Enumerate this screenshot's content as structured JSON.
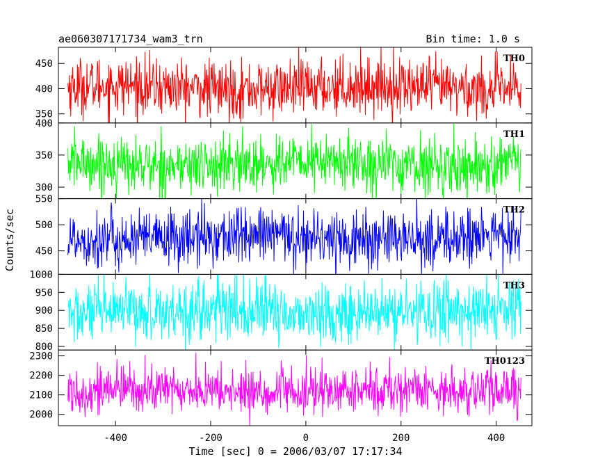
{
  "chart_data": {
    "type": "line",
    "title": "ae060307171734_wam3_trn",
    "subtitle": "Bin time: 1.0 s",
    "xlabel": "Time [sec] 0 = 2006/03/07 17:17:34",
    "ylabel": "Counts/sec",
    "xlim": [
      -520,
      475
    ],
    "x_range": [
      -500,
      452
    ],
    "x_ticks": [
      -400,
      -200,
      0,
      200,
      400
    ],
    "grid": false,
    "panels": [
      {
        "name": "TH0",
        "color": "#ff0000",
        "ylim": [
          332,
          482
        ],
        "y_ticks": [
          350,
          400,
          450
        ],
        "mean": 402,
        "amplitude": 28
      },
      {
        "name": "TH1",
        "color": "#00ff00",
        "ylim": [
          282,
          400
        ],
        "y_ticks": [
          300,
          350,
          400
        ],
        "mean": 336,
        "amplitude": 22
      },
      {
        "name": "TH2",
        "color": "#0000ff",
        "ylim": [
          405,
          550
        ],
        "y_ticks": [
          450,
          500,
          550
        ],
        "mean": 475,
        "amplitude": 28
      },
      {
        "name": "TH3",
        "color": "#00ffff",
        "ylim": [
          790,
          1000
        ],
        "y_ticks": [
          800,
          850,
          900,
          950,
          1000
        ],
        "mean": 895,
        "amplitude": 42
      },
      {
        "name": "TH0123",
        "color": "#ff00ff",
        "ylim": [
          1942,
          2330
        ],
        "y_ticks": [
          2000,
          2100,
          2200,
          2300
        ],
        "mean": 2120,
        "amplitude": 60
      }
    ]
  }
}
